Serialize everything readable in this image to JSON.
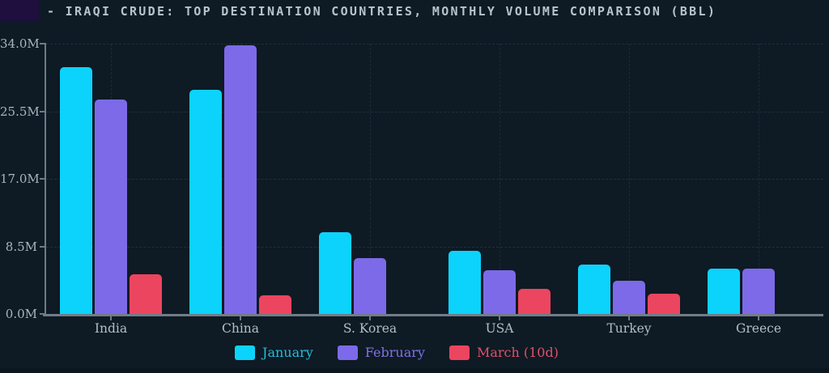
{
  "title": "- IRAQI CRUDE: TOP DESTINATION COUNTRIES, MONTHLY VOLUME COMPARISON (BBL)",
  "colors": {
    "background": "#0e1a24",
    "logo_block": "#1e0f3e",
    "title_text": "#b7c3cd",
    "axis": "#6e7a85",
    "tick_label": "#a9b5be",
    "category_label": "#b3bfc7",
    "grid": "rgba(130,160,185,0.16)",
    "january": "#0cd3fc",
    "february": "#7d6ae8",
    "march": "#ec455f"
  },
  "chart_data": {
    "type": "bar",
    "title": "IRAQI CRUDE: TOP DESTINATION COUNTRIES, MONTHLY VOLUME COMPARISON (BBL)",
    "categories": [
      "India",
      "China",
      "S. Korea",
      "USA",
      "Turkey",
      "Greece"
    ],
    "series": [
      {
        "name": "January",
        "color": "#0cd3fc",
        "legend_text_color": "#23bede",
        "values": [
          31.1,
          28.2,
          10.3,
          7.9,
          6.2,
          5.7
        ]
      },
      {
        "name": "February",
        "color": "#7d6ae8",
        "legend_text_color": "#8172e6",
        "values": [
          27.0,
          33.8,
          7.0,
          5.5,
          4.2,
          5.7
        ]
      },
      {
        "name": "March (10d)",
        "color": "#ec455f",
        "legend_text_color": "#e25069",
        "values": [
          5.0,
          2.3,
          null,
          3.2,
          2.5,
          null
        ]
      }
    ],
    "ylim": [
      0,
      34
    ],
    "yticks": [
      {
        "value": 0,
        "label": "0.0M"
      },
      {
        "value": 8.5,
        "label": "8.5M"
      },
      {
        "value": 17,
        "label": "17.0M"
      },
      {
        "value": 25.5,
        "label": "25.5M"
      },
      {
        "value": 34,
        "label": "34.0M"
      }
    ],
    "xlabel": "",
    "ylabel": "",
    "unit": "M BBL",
    "grid": "dashed horizontal and vertical",
    "legend_position": "bottom-center"
  }
}
